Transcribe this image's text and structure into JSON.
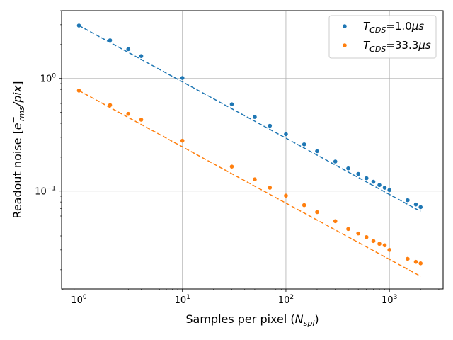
{
  "chart_data": {
    "type": "scatter",
    "title": "",
    "xlabel": "Samples per pixel (N_spl)",
    "xlabel_parts": {
      "main": "Samples per pixel (",
      "var": "N",
      "sub": "spl",
      "close": ")"
    },
    "ylabel": "Readout noise [e⁻_rms/pix]",
    "ylabel_parts": {
      "main": "Readout noise [",
      "var": "e",
      "sup": "−",
      "sub": "rms",
      "tail": "/pix",
      "close": "]"
    },
    "xscale": "log",
    "yscale": "log",
    "xlim": [
      0.68,
      3300
    ],
    "ylim": [
      0.0135,
      4.0
    ],
    "grid": true,
    "legend_position": "top-right",
    "x_ticks": [
      {
        "value": 1,
        "base": "10",
        "exp": "0"
      },
      {
        "value": 10,
        "base": "10",
        "exp": "1"
      },
      {
        "value": 100,
        "base": "10",
        "exp": "2"
      },
      {
        "value": 1000,
        "base": "10",
        "exp": "3"
      }
    ],
    "y_ticks": [
      {
        "value": 0.1,
        "base": "10",
        "exp": "−1"
      },
      {
        "value": 1,
        "base": "10",
        "exp": "0"
      }
    ],
    "series": [
      {
        "name": "T_CDS=1.0μs",
        "legend": {
          "var": "T",
          "sub": "CDS",
          "value": "=1.0",
          "unit": "μs"
        },
        "color": "#1f77b4",
        "x": [
          1,
          2,
          3,
          4,
          10,
          30,
          50,
          70,
          100,
          150,
          200,
          300,
          400,
          500,
          600,
          700,
          800,
          900,
          1000,
          1500,
          1800,
          2000
        ],
        "y": [
          2.95,
          2.18,
          1.82,
          1.58,
          1.01,
          0.59,
          0.455,
          0.38,
          0.32,
          0.26,
          0.226,
          0.183,
          0.159,
          0.142,
          0.13,
          0.121,
          0.113,
          0.107,
          0.102,
          0.083,
          0.076,
          0.072
        ],
        "fit": {
          "x": [
            1,
            2000
          ],
          "y": [
            2.95,
            0.066
          ]
        }
      },
      {
        "name": "T_CDS=33.3μs",
        "legend": {
          "var": "T",
          "sub": "CDS",
          "value": "=33.3",
          "unit": "μs"
        },
        "color": "#ff7f0e",
        "x": [
          1,
          2,
          3,
          4,
          10,
          30,
          50,
          70,
          100,
          150,
          200,
          300,
          400,
          500,
          600,
          700,
          800,
          900,
          1000,
          1500,
          1800,
          2000
        ],
        "y": [
          0.78,
          0.58,
          0.485,
          0.43,
          0.28,
          0.165,
          0.127,
          0.107,
          0.091,
          0.075,
          0.065,
          0.054,
          0.046,
          0.042,
          0.039,
          0.036,
          0.034,
          0.033,
          0.03,
          0.025,
          0.0235,
          0.0228
        ],
        "fit": {
          "x": [
            1,
            2000
          ],
          "y": [
            0.78,
            0.0175
          ]
        }
      }
    ]
  }
}
